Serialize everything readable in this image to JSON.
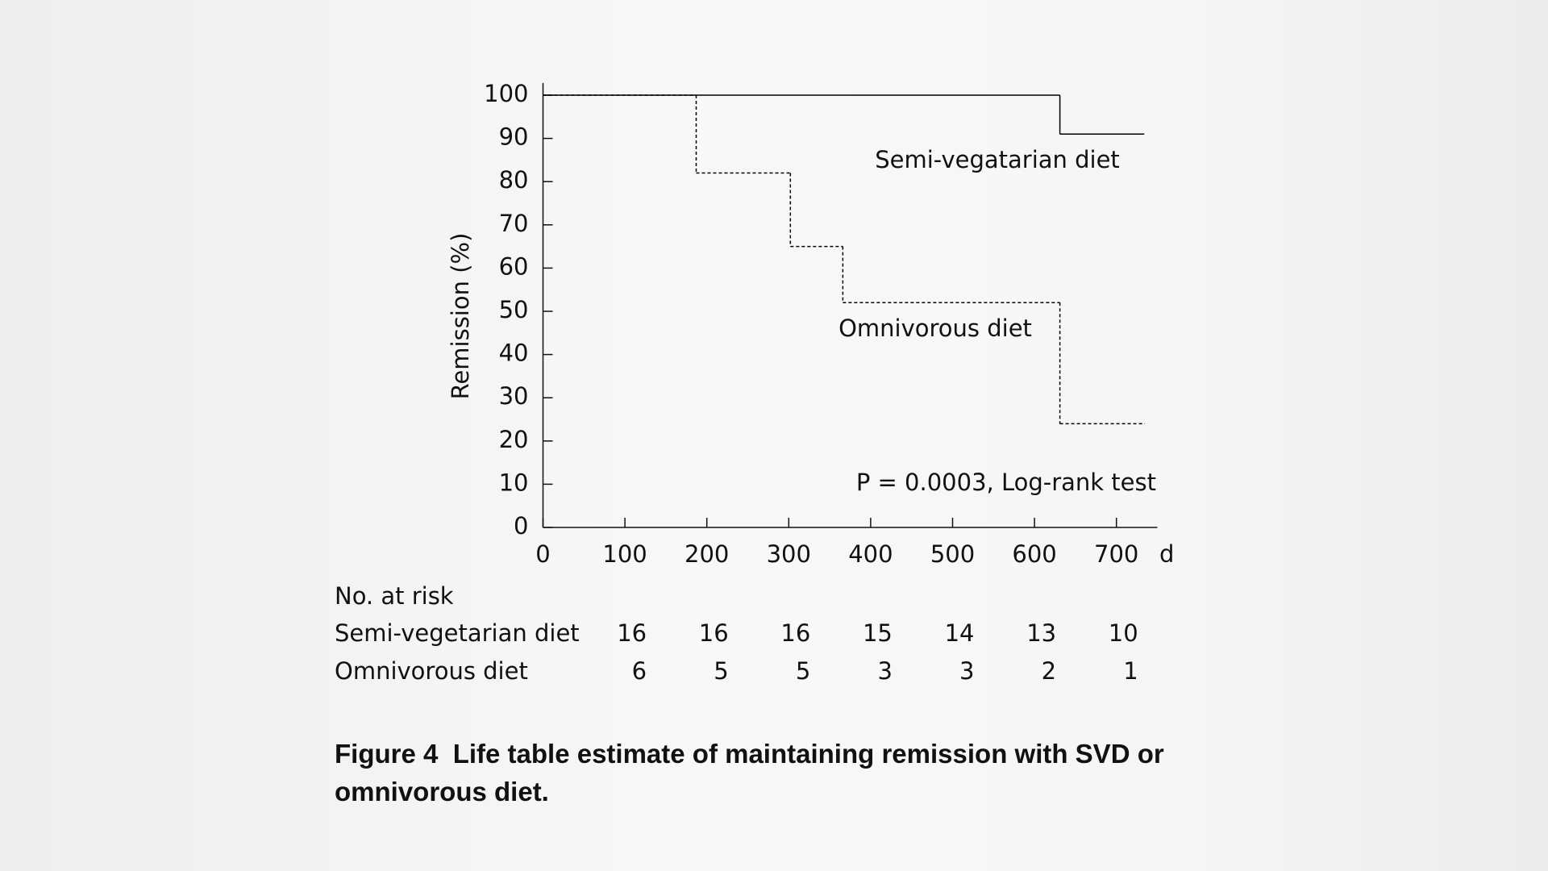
{
  "chart_data": {
    "type": "line",
    "step": "post",
    "y_label": "Remission (%)",
    "x_label": "d",
    "xlim": [
      0,
      750
    ],
    "xticks": [
      0,
      100,
      200,
      300,
      400,
      500,
      600,
      700
    ],
    "ylim": [
      0,
      100
    ],
    "yticks": [
      0,
      10,
      20,
      30,
      40,
      50,
      60,
      70,
      80,
      90,
      100
    ],
    "series": [
      {
        "name": "Semi-vegatarian diet",
        "color": "#000000",
        "dash": false,
        "x": [
          0,
          631,
          734
        ],
        "values": [
          100,
          91,
          91
        ]
      },
      {
        "name": "Omnivorous diet",
        "color": "#000000",
        "dash": true,
        "x": [
          0,
          187,
          302,
          366,
          631,
          734
        ],
        "values": [
          100,
          82,
          65,
          52,
          24,
          24
        ]
      }
    ],
    "annotation": "P = 0.0003, Log-rank test",
    "risk_table": {
      "title": "No. at risk",
      "rows": [
        {
          "name": "Semi-vegetarian diet",
          "values": [
            16,
            16,
            16,
            15,
            14,
            13,
            10
          ]
        },
        {
          "name": "Omnivorous diet",
          "values": [
            6,
            5,
            5,
            3,
            3,
            2,
            1
          ]
        }
      ]
    },
    "caption": {
      "label": "Figure 4",
      "text": "Life table estimate of maintaining remission with SVD or omnivorous diet."
    }
  }
}
